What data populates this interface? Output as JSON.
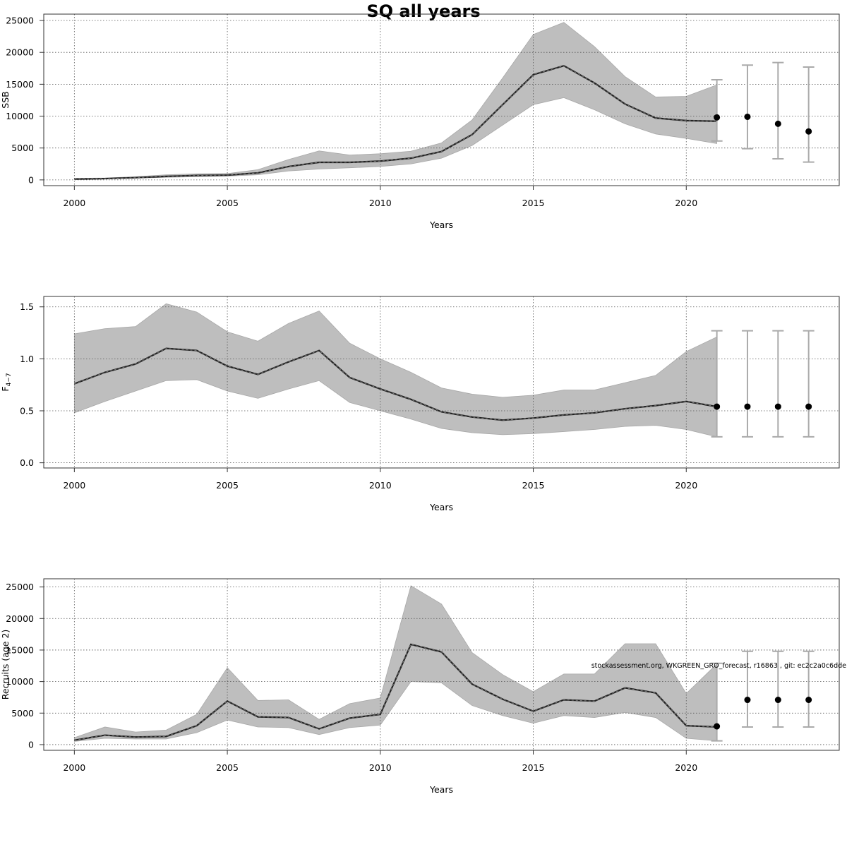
{
  "title": "SQ all years",
  "watermark": "stockassessment.org, WKGREEN_GRO_forecast, r16863 , git: ec2c2a0c6dde",
  "chart_data": [
    {
      "type": "line",
      "ylabel": "SSB",
      "xlabel": "Years",
      "xlim": [
        1999,
        2025
      ],
      "ylim": [
        -900,
        26000
      ],
      "xticks": [
        2000,
        2005,
        2010,
        2015,
        2020
      ],
      "yticks": [
        0,
        5000,
        10000,
        15000,
        20000,
        25000
      ],
      "ytick_labels": [
        "0",
        "5000",
        "10000",
        "15000",
        "20000",
        "25000"
      ],
      "grid": true,
      "estimate": {
        "x": [
          2000,
          2001,
          2002,
          2003,
          2004,
          2005,
          2006,
          2007,
          2008,
          2009,
          2010,
          2011,
          2012,
          2013,
          2014,
          2015,
          2016,
          2017,
          2018,
          2019,
          2020,
          2021
        ],
        "y": [
          120,
          200,
          350,
          550,
          700,
          750,
          1100,
          2100,
          2750,
          2750,
          2950,
          3400,
          4450,
          7100,
          11800,
          16500,
          17900,
          15200,
          11900,
          9700,
          9300,
          9200
        ],
        "lower": [
          80,
          150,
          280,
          400,
          500,
          600,
          800,
          1400,
          1700,
          1900,
          2100,
          2500,
          3400,
          5400,
          8600,
          11800,
          12900,
          11000,
          8800,
          7200,
          6500,
          5700
        ],
        "upper": [
          250,
          300,
          500,
          800,
          950,
          1000,
          1600,
          3200,
          4550,
          3900,
          4100,
          4500,
          5800,
          9400,
          16000,
          22800,
          24700,
          20900,
          16200,
          13000,
          13100,
          14900
        ]
      },
      "forecast": {
        "x": [
          2021,
          2022,
          2023,
          2024
        ],
        "y": [
          9800,
          9900,
          8800,
          7600
        ],
        "lower": [
          6100,
          4900,
          3300,
          2800
        ],
        "upper": [
          15700,
          18000,
          18400,
          17700
        ]
      }
    },
    {
      "type": "line",
      "ylabel": "F",
      "ylabel_sub": "4−7",
      "xlabel": "Years",
      "xlim": [
        1999,
        2025
      ],
      "ylim": [
        -0.05,
        1.6
      ],
      "xticks": [
        2000,
        2005,
        2010,
        2015,
        2020
      ],
      "yticks": [
        0,
        0.5,
        1,
        1.5
      ],
      "ytick_labels": [
        "0.0",
        "0.5",
        "1.0",
        "1.5"
      ],
      "grid": true,
      "estimate": {
        "x": [
          2000,
          2001,
          2002,
          2003,
          2004,
          2005,
          2006,
          2007,
          2008,
          2009,
          2010,
          2011,
          2012,
          2013,
          2014,
          2015,
          2016,
          2017,
          2018,
          2019,
          2020,
          2021
        ],
        "y": [
          0.76,
          0.87,
          0.95,
          1.1,
          1.08,
          0.93,
          0.85,
          0.97,
          1.08,
          0.82,
          0.71,
          0.61,
          0.49,
          0.44,
          0.41,
          0.43,
          0.46,
          0.48,
          0.52,
          0.55,
          0.59,
          0.54
        ],
        "lower": [
          0.48,
          0.59,
          0.69,
          0.79,
          0.8,
          0.69,
          0.62,
          0.71,
          0.79,
          0.58,
          0.5,
          0.42,
          0.33,
          0.29,
          0.27,
          0.28,
          0.3,
          0.32,
          0.35,
          0.36,
          0.32,
          0.25
        ],
        "upper": [
          1.24,
          1.29,
          1.31,
          1.53,
          1.45,
          1.26,
          1.17,
          1.34,
          1.46,
          1.15,
          1.0,
          0.87,
          0.72,
          0.66,
          0.63,
          0.65,
          0.7,
          0.7,
          0.77,
          0.84,
          1.07,
          1.21
        ]
      },
      "forecast": {
        "x": [
          2021,
          2022,
          2023,
          2024
        ],
        "y": [
          0.54,
          0.54,
          0.54,
          0.54
        ],
        "lower": [
          0.25,
          0.25,
          0.25,
          0.25
        ],
        "upper": [
          1.27,
          1.27,
          1.27,
          1.27
        ]
      }
    },
    {
      "type": "line",
      "ylabel": "Recruits (age 2)",
      "xlabel": "Years",
      "xlim": [
        1999,
        2025
      ],
      "ylim": [
        -900,
        26300
      ],
      "xticks": [
        2000,
        2005,
        2010,
        2015,
        2020
      ],
      "yticks": [
        0,
        5000,
        10000,
        15000,
        20000,
        25000
      ],
      "ytick_labels": [
        "0",
        "5000",
        "10000",
        "15000",
        "20000",
        "25000"
      ],
      "grid": true,
      "estimate": {
        "x": [
          2000,
          2001,
          2002,
          2003,
          2004,
          2005,
          2006,
          2007,
          2008,
          2009,
          2010,
          2011,
          2012,
          2013,
          2014,
          2015,
          2016,
          2017,
          2018,
          2019,
          2020,
          2021
        ],
        "y": [
          700,
          1500,
          1200,
          1300,
          3000,
          6900,
          4400,
          4300,
          2500,
          4200,
          4800,
          15900,
          14700,
          9600,
          7200,
          5300,
          7100,
          6900,
          9000,
          8200,
          3000,
          2800
        ],
        "lower": [
          500,
          1000,
          900,
          900,
          1900,
          3900,
          2800,
          2700,
          1600,
          2700,
          3100,
          10000,
          9800,
          6200,
          4600,
          3400,
          4600,
          4300,
          5100,
          4300,
          1000,
          600
        ],
        "upper": [
          1100,
          2800,
          2000,
          2300,
          4800,
          12200,
          7000,
          7100,
          4000,
          6500,
          7400,
          25200,
          22300,
          14600,
          11100,
          8400,
          11200,
          11200,
          16000,
          16000,
          8100,
          12800
        ]
      },
      "forecast": {
        "x": [
          2021,
          2022,
          2023,
          2024
        ],
        "y": [
          2900,
          7100,
          7100,
          7100
        ],
        "lower": [
          600,
          2800,
          2800,
          2800
        ],
        "upper": [
          12900,
          14800,
          14800,
          14800
        ]
      }
    }
  ]
}
